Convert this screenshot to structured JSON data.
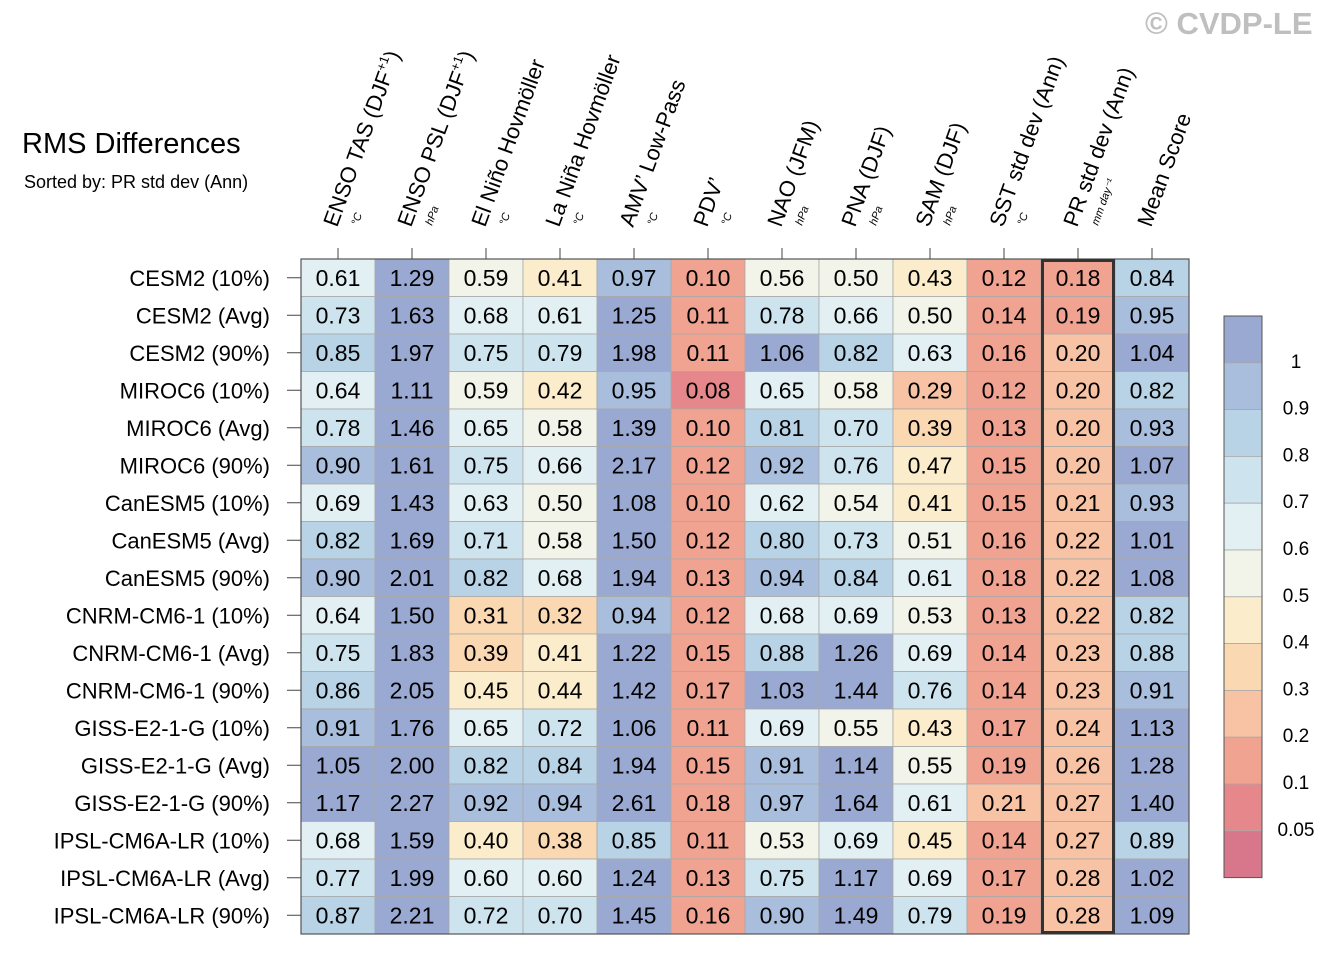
{
  "watermark": "© CVDP-LE",
  "chart_data": {
    "type": "heatmap",
    "title": "RMS Differences",
    "subtitle": "Sorted by: PR std dev (Ann)",
    "columns": [
      {
        "label": "ENSO TAS (DJF",
        "sup": "+1",
        "tail": ")",
        "unit": "°C"
      },
      {
        "label": "ENSO PSL (DJF",
        "sup": "+1",
        "tail": ")",
        "unit": "hPa"
      },
      {
        "label": "El Niño Hovmöller",
        "sup": "",
        "tail": "",
        "unit": "°C"
      },
      {
        "label": "La Niña Hovmöller",
        "sup": "",
        "tail": "",
        "unit": "°C"
      },
      {
        "label": "AMV’ Low-Pass",
        "sup": "",
        "tail": "",
        "unit": "°C"
      },
      {
        "label": "PDV’",
        "sup": "",
        "tail": "",
        "unit": "°C"
      },
      {
        "label": "NAO (JFM)",
        "sup": "",
        "tail": "",
        "unit": "hPa"
      },
      {
        "label": "PNA (DJF)",
        "sup": "",
        "tail": "",
        "unit": "hPa"
      },
      {
        "label": "SAM (DJF)",
        "sup": "",
        "tail": "",
        "unit": "hPa"
      },
      {
        "label": "SST std dev (Ann)",
        "sup": "",
        "tail": "",
        "unit": "°C"
      },
      {
        "label": "PR std dev (Ann)",
        "sup": "",
        "tail": "",
        "unit": "mm day⁻¹"
      },
      {
        "label": "Mean Score",
        "sup": "",
        "tail": "",
        "unit": ""
      }
    ],
    "rows": [
      "CESM2 (10%)",
      "CESM2 (Avg)",
      "CESM2 (90%)",
      "MIROC6 (10%)",
      "MIROC6 (Avg)",
      "MIROC6 (90%)",
      "CanESM5 (10%)",
      "CanESM5 (Avg)",
      "CanESM5 (90%)",
      "CNRM-CM6-1 (10%)",
      "CNRM-CM6-1 (Avg)",
      "CNRM-CM6-1 (90%)",
      "GISS-E2-1-G (10%)",
      "GISS-E2-1-G (Avg)",
      "GISS-E2-1-G (90%)",
      "IPSL-CM6A-LR (10%)",
      "IPSL-CM6A-LR (Avg)",
      "IPSL-CM6A-LR (90%)"
    ],
    "values": [
      [
        "0.61",
        "1.29",
        "0.59",
        "0.41",
        "0.97",
        "0.10",
        "0.56",
        "0.50",
        "0.43",
        "0.12",
        "0.18",
        "0.84"
      ],
      [
        "0.73",
        "1.63",
        "0.68",
        "0.61",
        "1.25",
        "0.11",
        "0.78",
        "0.66",
        "0.50",
        "0.14",
        "0.19",
        "0.95"
      ],
      [
        "0.85",
        "1.97",
        "0.75",
        "0.79",
        "1.98",
        "0.11",
        "1.06",
        "0.82",
        "0.63",
        "0.16",
        "0.20",
        "1.04"
      ],
      [
        "0.64",
        "1.11",
        "0.59",
        "0.42",
        "0.95",
        "0.08",
        "0.65",
        "0.58",
        "0.29",
        "0.12",
        "0.20",
        "0.82"
      ],
      [
        "0.78",
        "1.46",
        "0.65",
        "0.58",
        "1.39",
        "0.10",
        "0.81",
        "0.70",
        "0.39",
        "0.13",
        "0.20",
        "0.93"
      ],
      [
        "0.90",
        "1.61",
        "0.75",
        "0.66",
        "2.17",
        "0.12",
        "0.92",
        "0.76",
        "0.47",
        "0.15",
        "0.20",
        "1.07"
      ],
      [
        "0.69",
        "1.43",
        "0.63",
        "0.50",
        "1.08",
        "0.10",
        "0.62",
        "0.54",
        "0.41",
        "0.15",
        "0.21",
        "0.93"
      ],
      [
        "0.82",
        "1.69",
        "0.71",
        "0.58",
        "1.50",
        "0.12",
        "0.80",
        "0.73",
        "0.51",
        "0.16",
        "0.22",
        "1.01"
      ],
      [
        "0.90",
        "2.01",
        "0.82",
        "0.68",
        "1.94",
        "0.13",
        "0.94",
        "0.84",
        "0.61",
        "0.18",
        "0.22",
        "1.08"
      ],
      [
        "0.64",
        "1.50",
        "0.31",
        "0.32",
        "0.94",
        "0.12",
        "0.68",
        "0.69",
        "0.53",
        "0.13",
        "0.22",
        "0.82"
      ],
      [
        "0.75",
        "1.83",
        "0.39",
        "0.41",
        "1.22",
        "0.15",
        "0.88",
        "1.26",
        "0.69",
        "0.14",
        "0.23",
        "0.88"
      ],
      [
        "0.86",
        "2.05",
        "0.45",
        "0.44",
        "1.42",
        "0.17",
        "1.03",
        "1.44",
        "0.76",
        "0.14",
        "0.23",
        "0.91"
      ],
      [
        "0.91",
        "1.76",
        "0.65",
        "0.72",
        "1.06",
        "0.11",
        "0.69",
        "0.55",
        "0.43",
        "0.17",
        "0.24",
        "1.13"
      ],
      [
        "1.05",
        "2.00",
        "0.82",
        "0.84",
        "1.94",
        "0.15",
        "0.91",
        "1.14",
        "0.55",
        "0.19",
        "0.26",
        "1.28"
      ],
      [
        "1.17",
        "2.27",
        "0.92",
        "0.94",
        "2.61",
        "0.18",
        "0.97",
        "1.64",
        "0.61",
        "0.21",
        "0.27",
        "1.40"
      ],
      [
        "0.68",
        "1.59",
        "0.40",
        "0.38",
        "0.85",
        "0.11",
        "0.53",
        "0.69",
        "0.45",
        "0.14",
        "0.27",
        "0.89"
      ],
      [
        "0.77",
        "1.99",
        "0.60",
        "0.60",
        "1.24",
        "0.13",
        "0.75",
        "1.17",
        "0.69",
        "0.17",
        "0.28",
        "1.02"
      ],
      [
        "0.87",
        "2.21",
        "0.72",
        "0.70",
        "1.45",
        "0.16",
        "0.90",
        "1.49",
        "0.79",
        "0.19",
        "0.28",
        "1.09"
      ]
    ],
    "sorted_column": "PR std dev (Ann)",
    "colorbar": {
      "labels": [
        "1",
        "0.9",
        "0.8",
        "0.7",
        "0.6",
        "0.5",
        "0.4",
        "0.3",
        "0.2",
        "0.1",
        "0.05"
      ],
      "colors": [
        "#9aa9d1",
        "#a8bedc",
        "#b8d3e5",
        "#cde4ee",
        "#e2f0f4",
        "#f2f4ea",
        "#fbeccb",
        "#fad8b2",
        "#f7c3a4",
        "#f1a392",
        "#e6888b",
        "#d8778c"
      ],
      "thresholds": [
        1.0,
        0.9,
        0.8,
        0.7,
        0.6,
        0.5,
        0.4,
        0.3,
        0.2,
        0.1,
        0.05
      ]
    }
  }
}
